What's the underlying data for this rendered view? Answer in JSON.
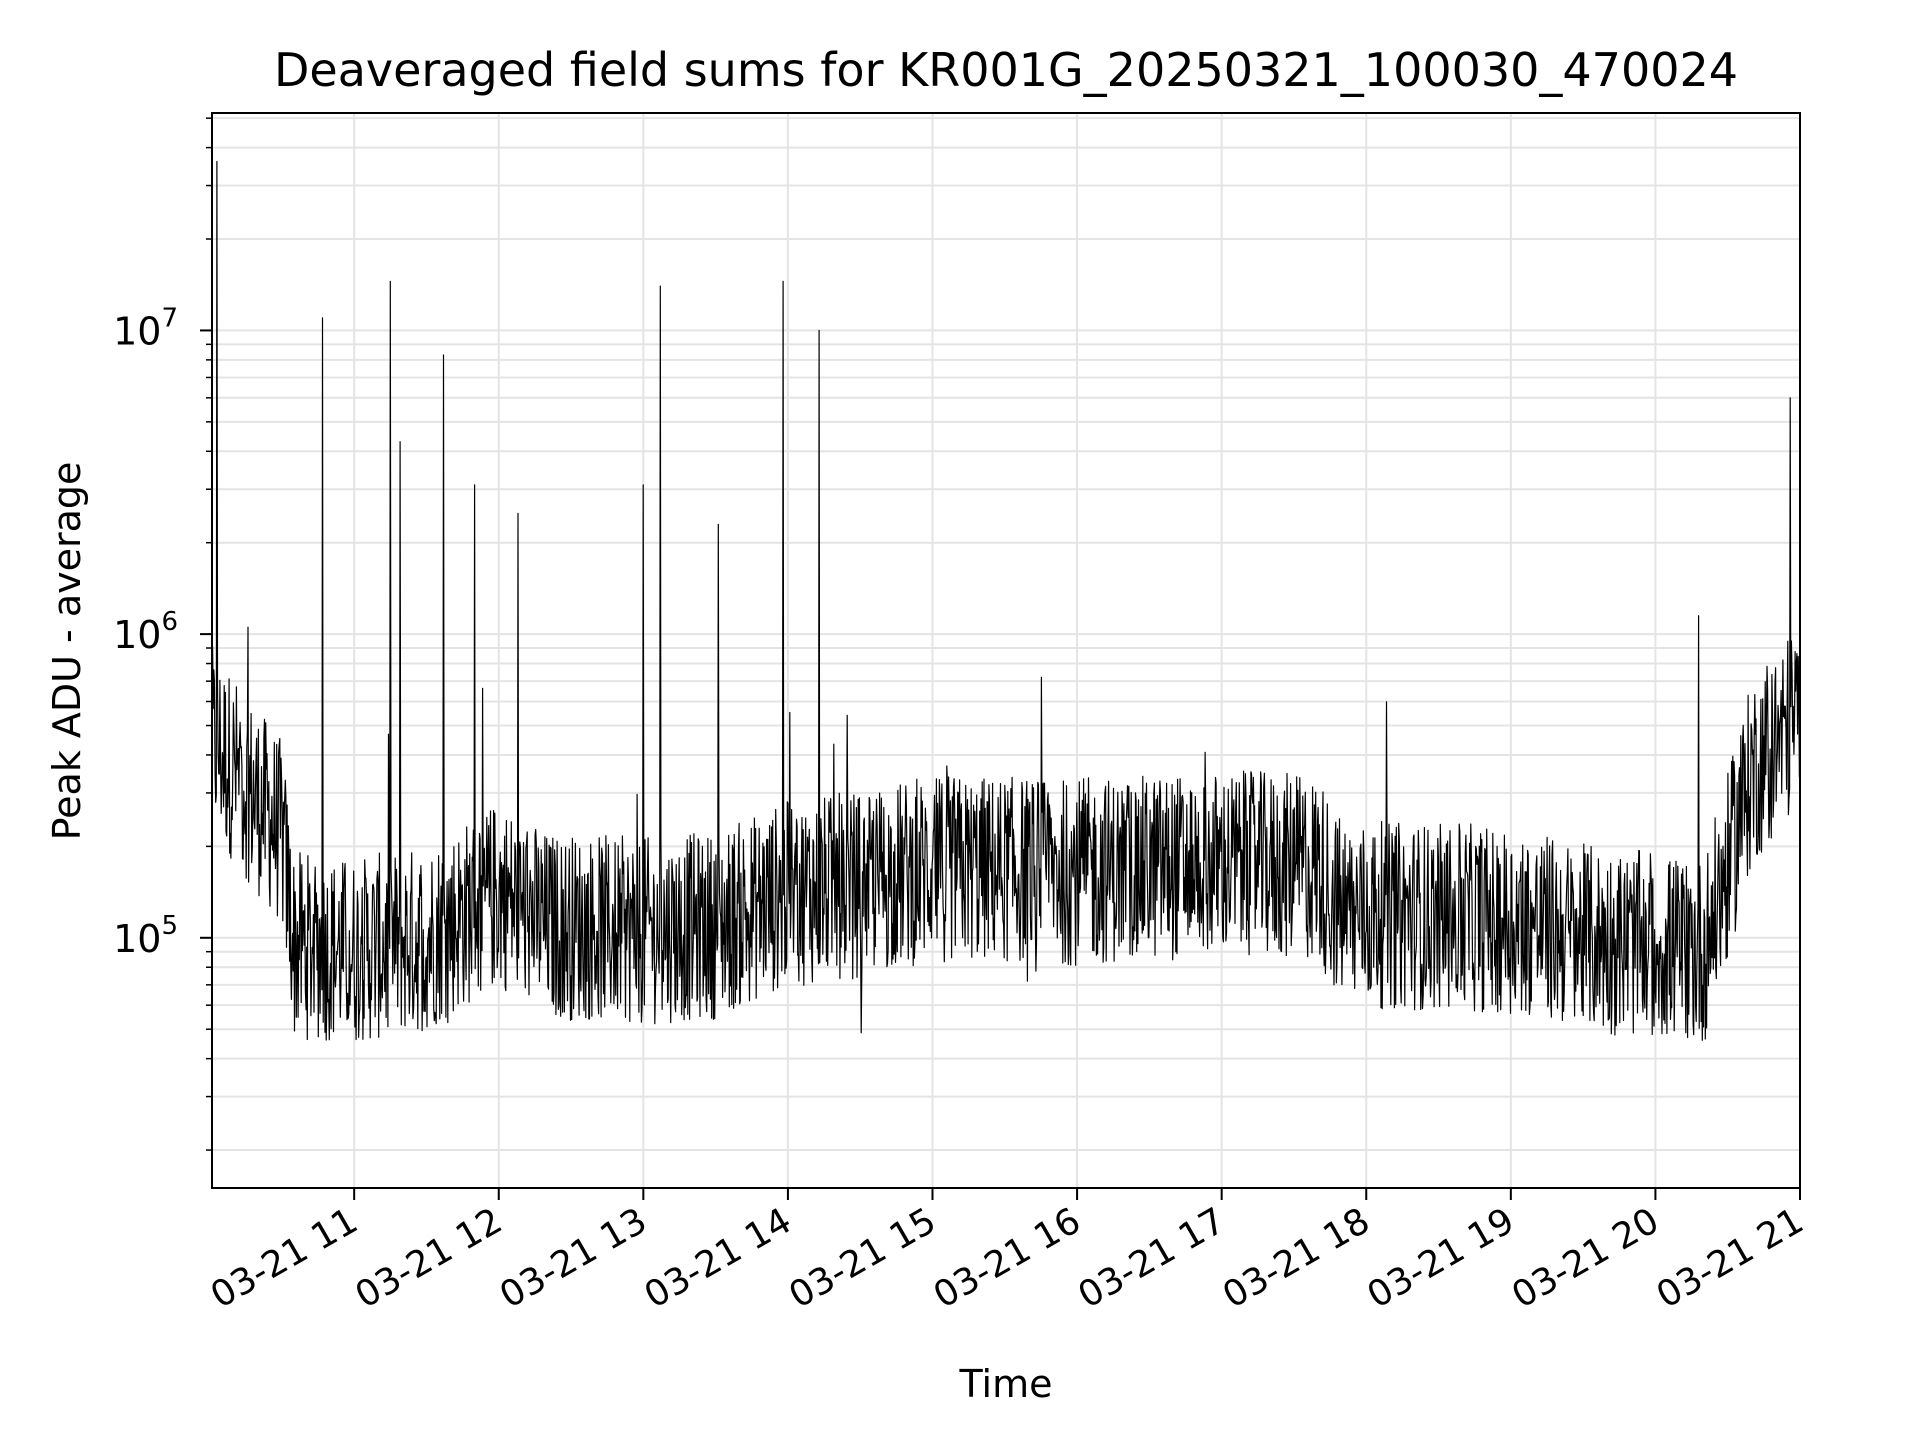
{
  "chart_data": {
    "type": "line",
    "title": "Deaveraged field sums for KR001G_20250321_100030_470024",
    "xlabel": "Time",
    "ylabel": "Peak ADU - average",
    "yscale": "log",
    "xlim": [
      "2025-03-21 10:01",
      "2025-03-21 21:00"
    ],
    "ylim": [
      15000,
      52000000
    ],
    "grid": true,
    "x_tick_labels": [
      "03-21 11",
      "03-21 12",
      "03-21 13",
      "03-21 14",
      "03-21 15",
      "03-21 16",
      "03-21 17",
      "03-21 18",
      "03-21 19",
      "03-21 20",
      "03-21 21"
    ],
    "y_tick_labels": [
      {
        "base": "10",
        "exp": "5"
      },
      {
        "base": "10",
        "exp": "6"
      },
      {
        "base": "10",
        "exp": "7"
      }
    ],
    "series": [
      {
        "color": "#000000",
        "baseline": [
          [
            "2025-03-21 10:01",
            450000
          ],
          [
            "2025-03-21 10:30",
            220000
          ],
          [
            "2025-03-21 10:35",
            95000
          ],
          [
            "2025-03-21 11:00",
            90000
          ],
          [
            "2025-03-21 11:30",
            100000
          ],
          [
            "2025-03-21 12:00",
            140000
          ],
          [
            "2025-03-21 12:20",
            110000
          ],
          [
            "2025-03-21 13:00",
            105000
          ],
          [
            "2025-03-21 13:30",
            110000
          ],
          [
            "2025-03-21 14:00",
            140000
          ],
          [
            "2025-03-21 14:30",
            150000
          ],
          [
            "2025-03-21 15:00",
            170000
          ],
          [
            "2025-03-21 16:00",
            165000
          ],
          [
            "2025-03-21 17:00",
            175000
          ],
          [
            "2025-03-21 17:40",
            170000
          ],
          [
            "2025-03-21 17:50",
            120000
          ],
          [
            "2025-03-21 19:00",
            115000
          ],
          [
            "2025-03-21 19:30",
            100000
          ],
          [
            "2025-03-21 20:20",
            90000
          ],
          [
            "2025-03-21 20:30",
            170000
          ],
          [
            "2025-03-21 20:40",
            350000
          ],
          [
            "2025-03-21 21:00",
            550000
          ]
        ],
        "spikes": [
          [
            "2025-03-21 10:03",
            36000000
          ],
          [
            "2025-03-21 10:47",
            11000000
          ],
          [
            "2025-03-21 11:15",
            14500000
          ],
          [
            "2025-03-21 11:19",
            4300000
          ],
          [
            "2025-03-21 11:37",
            8300000
          ],
          [
            "2025-03-21 11:50",
            3100000
          ],
          [
            "2025-03-21 12:08",
            2500000
          ],
          [
            "2025-03-21 13:00",
            3100000
          ],
          [
            "2025-03-21 13:07",
            14000000
          ],
          [
            "2025-03-21 13:31",
            2300000
          ],
          [
            "2025-03-21 13:58",
            14500000
          ],
          [
            "2025-03-21 14:13",
            10000000
          ],
          [
            "2025-03-21 20:18",
            1150000
          ],
          [
            "2025-03-21 20:56",
            6000000
          ]
        ]
      }
    ]
  }
}
